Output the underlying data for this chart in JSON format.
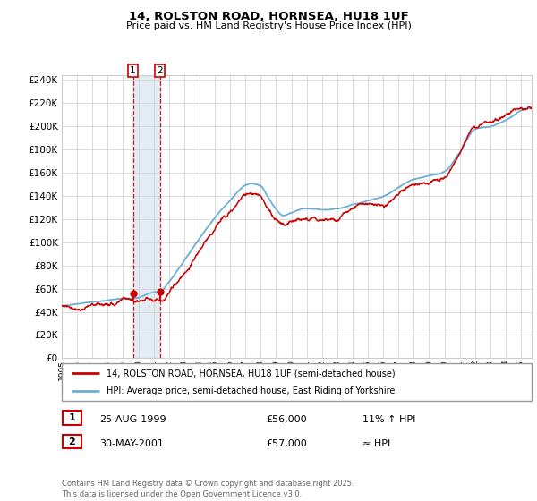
{
  "title": "14, ROLSTON ROAD, HORNSEA, HU18 1UF",
  "subtitle": "Price paid vs. HM Land Registry's House Price Index (HPI)",
  "legend_line1": "14, ROLSTON ROAD, HORNSEA, HU18 1UF (semi-detached house)",
  "legend_line2": "HPI: Average price, semi-detached house, East Riding of Yorkshire",
  "transaction1_date": "25-AUG-1999",
  "transaction1_price": "£56,000",
  "transaction1_hpi": "11% ↑ HPI",
  "transaction2_date": "30-MAY-2001",
  "transaction2_price": "£57,000",
  "transaction2_hpi": "≈ HPI",
  "footer": "Contains HM Land Registry data © Crown copyright and database right 2025.\nThis data is licensed under the Open Government Licence v3.0.",
  "hpi_color": "#6baed6",
  "price_color": "#cc0000",
  "marker_color": "#cc0000",
  "background_color": "#ffffff",
  "grid_color": "#cccccc",
  "vspan_color": "#dce6f1",
  "transaction1_x": 1999.65,
  "transaction2_x": 2001.42,
  "ylim_max": 244000,
  "xlim_start": 1995.0,
  "xlim_end": 2025.7,
  "hpi_seed": 10,
  "price_seed": 77
}
